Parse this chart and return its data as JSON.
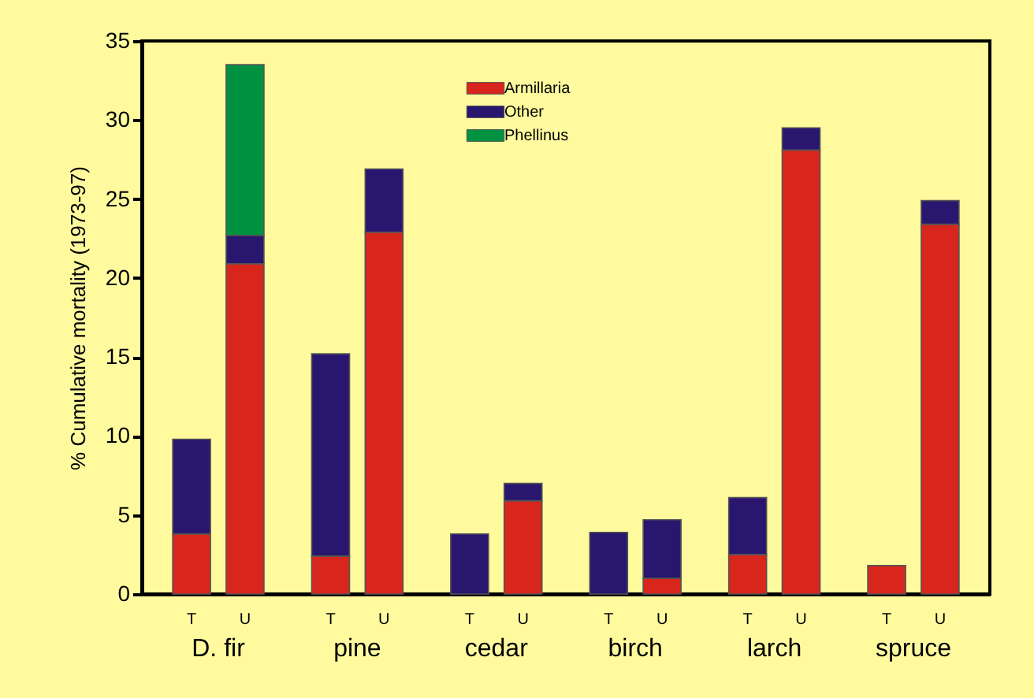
{
  "chart_data": {
    "type": "bar",
    "stacked": true,
    "categories": [
      "T",
      "U",
      "T",
      "U",
      "T",
      "U",
      "T",
      "U",
      "T",
      "U",
      "T",
      "U"
    ],
    "series": [
      {
        "name": "Armillaria",
        "color": "#d9261c",
        "values": [
          3.8,
          20.9,
          2.4,
          22.9,
          null,
          5.9,
          null,
          1.0,
          2.5,
          28.1,
          1.8,
          23.4
        ]
      },
      {
        "name": "Other",
        "color": "#29166f",
        "values": [
          6.0,
          1.8,
          12.8,
          4.0,
          3.8,
          1.1,
          3.9,
          3.7,
          3.6,
          1.4,
          null,
          1.5
        ]
      },
      {
        "name": "Phellinus",
        "color": "#009240",
        "values": [
          null,
          10.8,
          null,
          null,
          null,
          null,
          null,
          null,
          null,
          null,
          null,
          null
        ]
      }
    ],
    "ylabel": "% Cumulative mortality (1973-97)",
    "ylim": [
      0,
      35
    ],
    "yticks": [
      0,
      5,
      10,
      15,
      20,
      25,
      30,
      35
    ],
    "annotations": [
      "D. fir",
      "pine",
      "cedar",
      "birch",
      "larch",
      "spruce"
    ],
    "grid": false,
    "legend": "top"
  }
}
